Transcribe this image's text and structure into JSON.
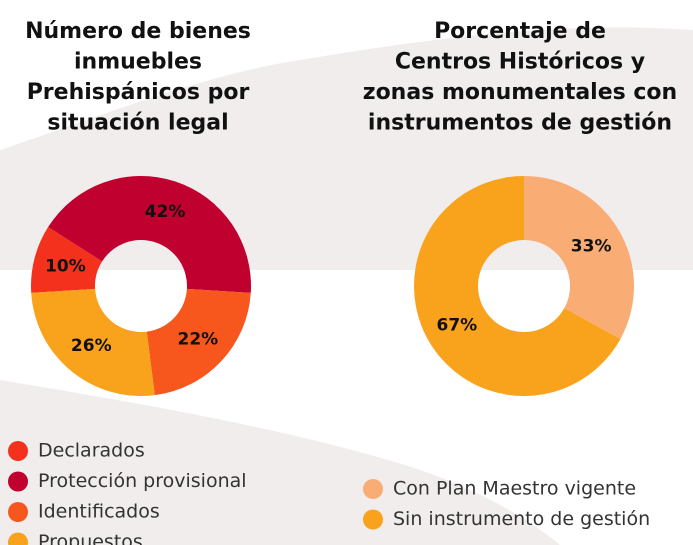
{
  "chart_data": [
    {
      "type": "donut",
      "title": [
        "Número de bienes",
        "inmuebles",
        "Prehispánicos por",
        "situación legal"
      ],
      "categories": [
        "Declarados",
        "Protección provisional",
        "Identificados",
        "Propuestos"
      ],
      "values": [
        10,
        42,
        22,
        26
      ],
      "value_labels": [
        "10%",
        "42%",
        "22%",
        "26%"
      ],
      "colors": [
        "#f4311c",
        "#c0002f",
        "#f7561c",
        "#f9a21b"
      ]
    },
    {
      "type": "donut",
      "title": [
        "Porcentaje de",
        "Centros Históricos y",
        "zonas monumentales con",
        "instrumentos de gestión"
      ],
      "categories": [
        "Con Plan Maestro vigente",
        "Sin instrumento de gestión"
      ],
      "values": [
        33,
        67
      ],
      "value_labels": [
        "33%",
        "67%"
      ],
      "colors": [
        "#f9ad75",
        "#f9a21b"
      ]
    }
  ]
}
